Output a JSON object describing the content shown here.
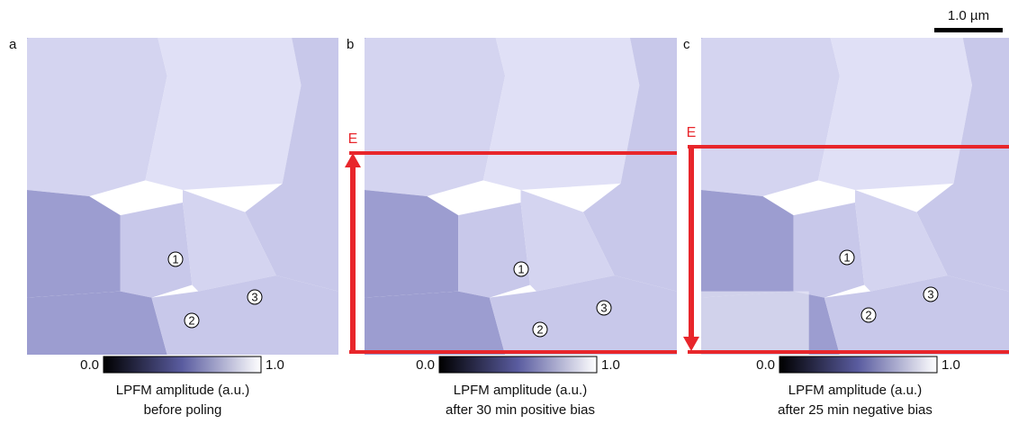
{
  "scale_bar": "1.0 µm",
  "panels": [
    {
      "letter": "a",
      "colorbar": {
        "min": "0.0",
        "max": "1.0"
      },
      "caption": [
        "LPFM amplitude (a.u.)",
        "before poling"
      ],
      "markers": [
        "1",
        "2",
        "3"
      ]
    },
    {
      "letter": "b",
      "field_label": "E",
      "colorbar": {
        "min": "0.0",
        "max": "1.0"
      },
      "caption": [
        "LPFM amplitude (a.u.)",
        "after 30 min positive bias"
      ],
      "markers": [
        "1",
        "2",
        "3"
      ]
    },
    {
      "letter": "c",
      "field_label": "E",
      "colorbar": {
        "min": "0.0",
        "max": "1.0"
      },
      "caption": [
        "LPFM amplitude (a.u.)",
        "after 25 min negative bias"
      ],
      "markers": [
        "1",
        "2",
        "3"
      ]
    }
  ]
}
